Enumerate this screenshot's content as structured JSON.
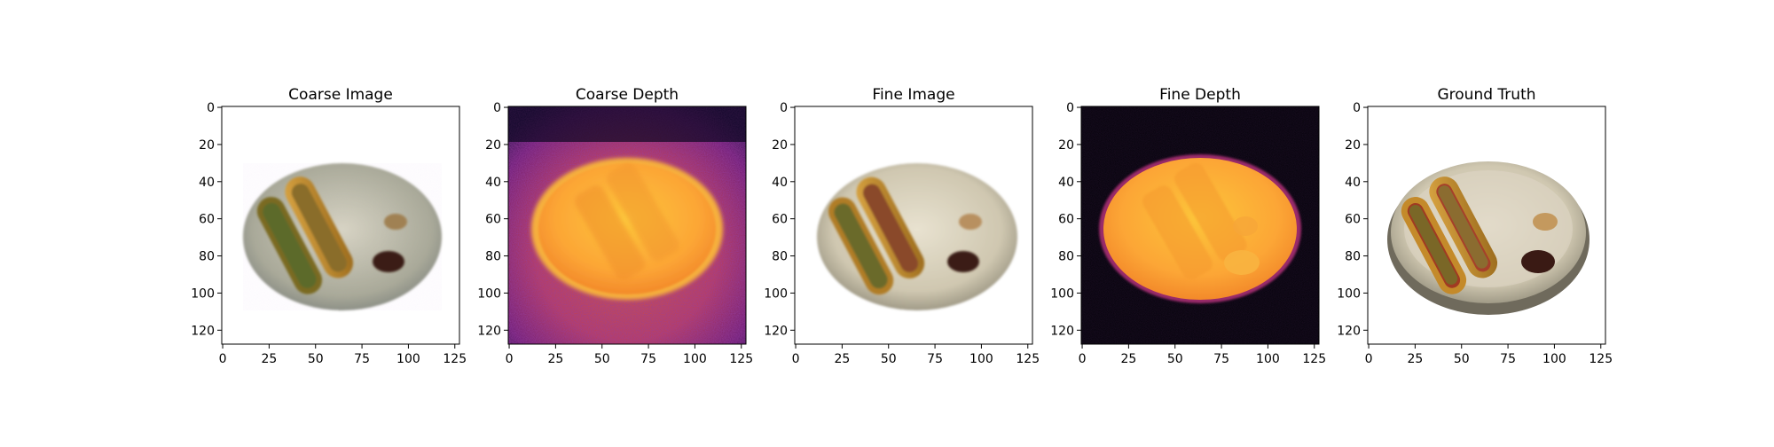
{
  "figure": {
    "panels": [
      {
        "title": "Coarse Image",
        "kind": "rgb"
      },
      {
        "title": "Coarse Depth",
        "kind": "depth"
      },
      {
        "title": "Fine Image",
        "kind": "rgb"
      },
      {
        "title": "Fine Depth",
        "kind": "depth"
      },
      {
        "title": "Ground Truth",
        "kind": "rgb"
      }
    ],
    "x_ticks": [
      "0",
      "25",
      "50",
      "75",
      "100",
      "125"
    ],
    "y_ticks": [
      "0",
      "20",
      "40",
      "60",
      "80",
      "100",
      "120"
    ]
  },
  "colors": {
    "depth_background_noisy": "#3a1a5a",
    "depth_background_clean": "#000004",
    "depth_plate": "#fca636",
    "plate": "#d9d3c0",
    "bun": "#c8902a",
    "sauce": "#3a1e14"
  }
}
